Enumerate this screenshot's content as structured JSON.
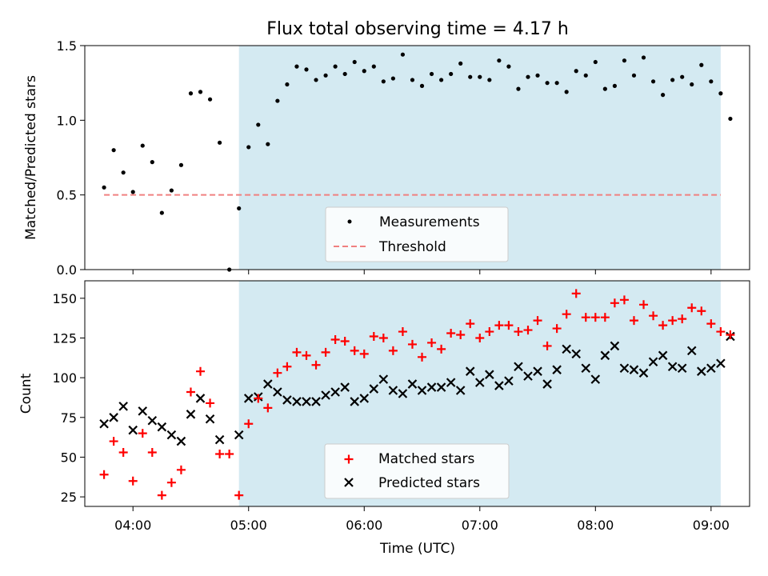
{
  "title": "Flux total observing time = 4.17 h",
  "colors": {
    "shade": "#add8e6",
    "measurement": "#000000",
    "threshold": "#f08080",
    "matched": "#ff0000",
    "predicted": "#000000"
  },
  "chart_data": [
    {
      "type": "scatter",
      "ylabel": "Matched/Predicted stars",
      "xlabel": "",
      "ylim": [
        0,
        1.5
      ],
      "yticks": [
        "0.0",
        "0.5",
        "1.0",
        "1.5"
      ],
      "xlim": [
        "03:35",
        "09:20"
      ],
      "xticks": [
        "04:00",
        "05:00",
        "06:00",
        "07:00",
        "08:00",
        "09:00"
      ],
      "shaded_interval": [
        "04:55",
        "09:05"
      ],
      "threshold": {
        "name": "Threshold",
        "value": 0.5,
        "x": [
          "03:45",
          "09:05"
        ]
      },
      "legend": {
        "position": "lower-center",
        "entries": [
          "Measurements",
          "Threshold"
        ]
      },
      "series": [
        {
          "name": "Measurements",
          "points": [
            [
              "03:45",
              0.55
            ],
            [
              "03:50",
              0.8
            ],
            [
              "03:55",
              0.65
            ],
            [
              "04:00",
              0.52
            ],
            [
              "04:05",
              0.83
            ],
            [
              "04:10",
              0.72
            ],
            [
              "04:15",
              0.38
            ],
            [
              "04:20",
              0.53
            ],
            [
              "04:25",
              0.7
            ],
            [
              "04:30",
              1.18
            ],
            [
              "04:35",
              1.19
            ],
            [
              "04:40",
              1.14
            ],
            [
              "04:45",
              0.85
            ],
            [
              "04:50",
              0.0
            ],
            [
              "04:55",
              0.41
            ],
            [
              "05:00",
              0.82
            ],
            [
              "05:05",
              0.97
            ],
            [
              "05:10",
              0.84
            ],
            [
              "05:15",
              1.13
            ],
            [
              "05:20",
              1.24
            ],
            [
              "05:25",
              1.36
            ],
            [
              "05:30",
              1.34
            ],
            [
              "05:35",
              1.27
            ],
            [
              "05:40",
              1.3
            ],
            [
              "05:45",
              1.36
            ],
            [
              "05:50",
              1.31
            ],
            [
              "05:55",
              1.39
            ],
            [
              "06:00",
              1.33
            ],
            [
              "06:05",
              1.36
            ],
            [
              "06:10",
              1.26
            ],
            [
              "06:15",
              1.28
            ],
            [
              "06:20",
              1.44
            ],
            [
              "06:25",
              1.27
            ],
            [
              "06:30",
              1.23
            ],
            [
              "06:35",
              1.31
            ],
            [
              "06:40",
              1.27
            ],
            [
              "06:45",
              1.31
            ],
            [
              "06:50",
              1.38
            ],
            [
              "06:55",
              1.29
            ],
            [
              "07:00",
              1.29
            ],
            [
              "07:05",
              1.27
            ],
            [
              "07:10",
              1.4
            ],
            [
              "07:15",
              1.36
            ],
            [
              "07:20",
              1.21
            ],
            [
              "07:25",
              1.29
            ],
            [
              "07:30",
              1.3
            ],
            [
              "07:35",
              1.25
            ],
            [
              "07:40",
              1.25
            ],
            [
              "07:45",
              1.19
            ],
            [
              "07:50",
              1.33
            ],
            [
              "07:55",
              1.3
            ],
            [
              "08:00",
              1.39
            ],
            [
              "08:05",
              1.21
            ],
            [
              "08:10",
              1.23
            ],
            [
              "08:15",
              1.4
            ],
            [
              "08:20",
              1.3
            ],
            [
              "08:25",
              1.42
            ],
            [
              "08:30",
              1.26
            ],
            [
              "08:35",
              1.17
            ],
            [
              "08:40",
              1.27
            ],
            [
              "08:45",
              1.29
            ],
            [
              "08:50",
              1.24
            ],
            [
              "08:55",
              1.37
            ],
            [
              "09:00",
              1.26
            ],
            [
              "09:05",
              1.18
            ],
            [
              "09:10",
              1.01
            ]
          ]
        }
      ]
    },
    {
      "type": "scatter",
      "ylabel": "Count",
      "xlabel": "Time (UTC)",
      "ylim": [
        19,
        161
      ],
      "yticks": [
        "25",
        "50",
        "75",
        "100",
        "125",
        "150"
      ],
      "xlim": [
        "03:35",
        "09:20"
      ],
      "xticks": [
        "04:00",
        "05:00",
        "06:00",
        "07:00",
        "08:00",
        "09:00"
      ],
      "shaded_interval": [
        "04:55",
        "09:05"
      ],
      "legend": {
        "position": "lower-center",
        "entries": [
          "Matched stars",
          "Predicted stars"
        ]
      },
      "series": [
        {
          "name": "Matched stars",
          "points": [
            [
              "03:45",
              39
            ],
            [
              "03:50",
              60
            ],
            [
              "03:55",
              53
            ],
            [
              "04:00",
              35
            ],
            [
              "04:05",
              65
            ],
            [
              "04:10",
              53
            ],
            [
              "04:15",
              26
            ],
            [
              "04:20",
              34
            ],
            [
              "04:25",
              42
            ],
            [
              "04:30",
              91
            ],
            [
              "04:35",
              104
            ],
            [
              "04:40",
              84
            ],
            [
              "04:45",
              52
            ],
            [
              "04:50",
              52
            ],
            [
              "04:55",
              26
            ],
            [
              "05:00",
              71
            ],
            [
              "05:05",
              87
            ],
            [
              "05:10",
              81
            ],
            [
              "05:15",
              103
            ],
            [
              "05:20",
              107
            ],
            [
              "05:25",
              116
            ],
            [
              "05:30",
              114
            ],
            [
              "05:35",
              108
            ],
            [
              "05:40",
              116
            ],
            [
              "05:45",
              124
            ],
            [
              "05:50",
              123
            ],
            [
              "05:55",
              117
            ],
            [
              "06:00",
              115
            ],
            [
              "06:05",
              126
            ],
            [
              "06:10",
              125
            ],
            [
              "06:15",
              117
            ],
            [
              "06:20",
              129
            ],
            [
              "06:25",
              121
            ],
            [
              "06:30",
              113
            ],
            [
              "06:35",
              122
            ],
            [
              "06:40",
              118
            ],
            [
              "06:45",
              128
            ],
            [
              "06:50",
              127
            ],
            [
              "06:55",
              134
            ],
            [
              "07:00",
              125
            ],
            [
              "07:05",
              129
            ],
            [
              "07:10",
              133
            ],
            [
              "07:15",
              133
            ],
            [
              "07:20",
              129
            ],
            [
              "07:25",
              130
            ],
            [
              "07:30",
              136
            ],
            [
              "07:35",
              120
            ],
            [
              "07:40",
              131
            ],
            [
              "07:45",
              140
            ],
            [
              "07:50",
              153
            ],
            [
              "07:55",
              138
            ],
            [
              "08:00",
              138
            ],
            [
              "08:05",
              138
            ],
            [
              "08:10",
              147
            ],
            [
              "08:15",
              149
            ],
            [
              "08:20",
              136
            ],
            [
              "08:25",
              146
            ],
            [
              "08:30",
              139
            ],
            [
              "08:35",
              133
            ],
            [
              "08:40",
              136
            ],
            [
              "08:45",
              137
            ],
            [
              "08:50",
              144
            ],
            [
              "08:55",
              142
            ],
            [
              "09:00",
              134
            ],
            [
              "09:05",
              129
            ],
            [
              "09:10",
              127
            ]
          ]
        },
        {
          "name": "Predicted stars",
          "points": [
            [
              "03:45",
              71
            ],
            [
              "03:50",
              75
            ],
            [
              "03:55",
              82
            ],
            [
              "04:00",
              67
            ],
            [
              "04:05",
              79
            ],
            [
              "04:10",
              73
            ],
            [
              "04:15",
              69
            ],
            [
              "04:20",
              64
            ],
            [
              "04:25",
              60
            ],
            [
              "04:30",
              77
            ],
            [
              "04:35",
              87
            ],
            [
              "04:40",
              74
            ],
            [
              "04:45",
              61
            ],
            [
              "04:55",
              64
            ],
            [
              "05:00",
              87
            ],
            [
              "05:05",
              88
            ],
            [
              "05:10",
              96
            ],
            [
              "05:15",
              91
            ],
            [
              "05:20",
              86
            ],
            [
              "05:25",
              85
            ],
            [
              "05:30",
              85
            ],
            [
              "05:35",
              85
            ],
            [
              "05:40",
              89
            ],
            [
              "05:45",
              91
            ],
            [
              "05:50",
              94
            ],
            [
              "05:55",
              85
            ],
            [
              "06:00",
              87
            ],
            [
              "06:05",
              93
            ],
            [
              "06:10",
              99
            ],
            [
              "06:15",
              92
            ],
            [
              "06:20",
              90
            ],
            [
              "06:25",
              96
            ],
            [
              "06:30",
              92
            ],
            [
              "06:35",
              94
            ],
            [
              "06:40",
              94
            ],
            [
              "06:45",
              97
            ],
            [
              "06:50",
              92
            ],
            [
              "06:55",
              104
            ],
            [
              "07:00",
              97
            ],
            [
              "07:05",
              102
            ],
            [
              "07:10",
              95
            ],
            [
              "07:15",
              98
            ],
            [
              "07:20",
              107
            ],
            [
              "07:25",
              101
            ],
            [
              "07:30",
              104
            ],
            [
              "07:35",
              96
            ],
            [
              "07:40",
              105
            ],
            [
              "07:45",
              118
            ],
            [
              "07:50",
              115
            ],
            [
              "07:55",
              106
            ],
            [
              "08:00",
              99
            ],
            [
              "08:05",
              114
            ],
            [
              "08:10",
              120
            ],
            [
              "08:15",
              106
            ],
            [
              "08:20",
              105
            ],
            [
              "08:25",
              103
            ],
            [
              "08:30",
              110
            ],
            [
              "08:35",
              114
            ],
            [
              "08:40",
              107
            ],
            [
              "08:45",
              106
            ],
            [
              "08:50",
              117
            ],
            [
              "08:55",
              104
            ],
            [
              "09:00",
              106
            ],
            [
              "09:05",
              109
            ],
            [
              "09:10",
              126
            ]
          ]
        }
      ]
    }
  ]
}
